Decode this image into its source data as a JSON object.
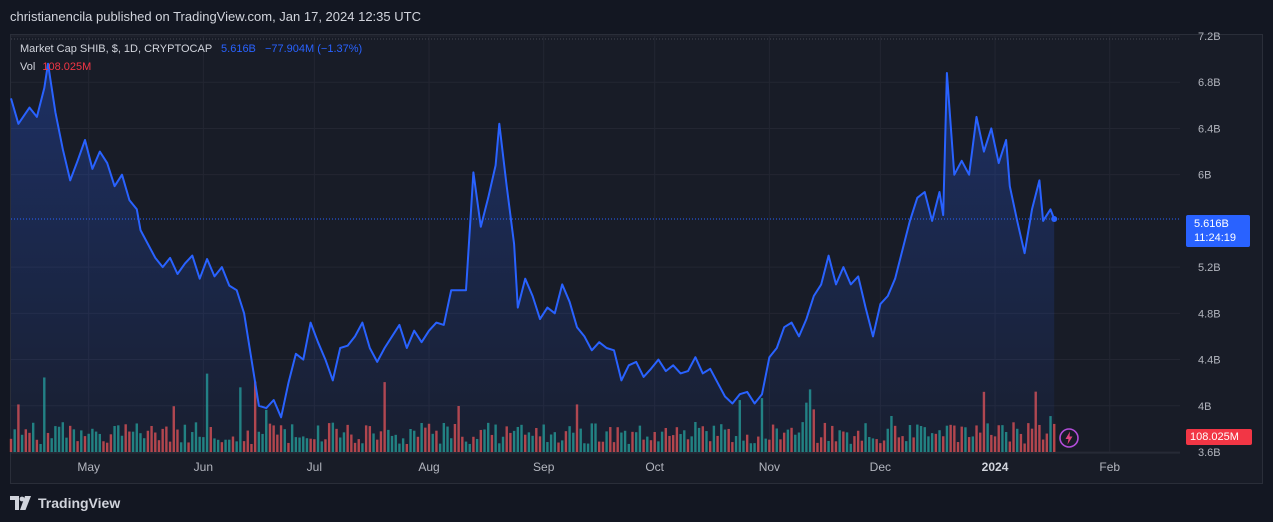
{
  "header": {
    "publisher_line": "christianencila published on TradingView.com, Jan 17, 2024 12:35 UTC"
  },
  "legend": {
    "symbol": "Market Cap SHIB, $, 1D, CRYPTOCAP",
    "last": "5.616B",
    "change": "−77.904M (−1.37%)",
    "vol_label": "Vol",
    "vol_value": "108.025M"
  },
  "price_tag": {
    "value": "5.616B",
    "countdown": "11:24:19"
  },
  "vol_tag": {
    "value": "108.025M"
  },
  "footer": {
    "brand": "TradingView"
  },
  "colors": {
    "line": "#2962ff",
    "vol_up": "#26a69a",
    "vol_down": "#ef5350",
    "background": "#181c27",
    "grid": "#232632"
  },
  "chart_data": {
    "type": "area",
    "title": "Market Cap SHIB, $, 1D, CRYPTOCAP",
    "y_axis": {
      "ticks": [
        {
          "v": 3.6,
          "label": "3.6B"
        },
        {
          "v": 4.0,
          "label": "4B"
        },
        {
          "v": 4.4,
          "label": "4.4B"
        },
        {
          "v": 4.8,
          "label": "4.8B"
        },
        {
          "v": 5.2,
          "label": "5.2B"
        },
        {
          "v": 6.0,
          "label": "6B"
        },
        {
          "v": 6.4,
          "label": "6.4B"
        },
        {
          "v": 6.8,
          "label": "6.8B"
        },
        {
          "v": 7.2,
          "label": "7.2B"
        }
      ],
      "range": [
        3.6,
        7.2
      ],
      "unit": "B"
    },
    "x_axis": {
      "labels": [
        {
          "label": "May",
          "date": "2023-05-01",
          "bold": false
        },
        {
          "label": "Jun",
          "date": "2023-06-01",
          "bold": false
        },
        {
          "label": "Jul",
          "date": "2023-07-01",
          "bold": false
        },
        {
          "label": "Aug",
          "date": "2023-08-01",
          "bold": false
        },
        {
          "label": "Sep",
          "date": "2023-09-01",
          "bold": false
        },
        {
          "label": "Oct",
          "date": "2023-10-01",
          "bold": false
        },
        {
          "label": "Nov",
          "date": "2023-11-01",
          "bold": false
        },
        {
          "label": "Dec",
          "date": "2023-12-01",
          "bold": false
        },
        {
          "label": "2024",
          "date": "2024-01-01",
          "bold": true
        },
        {
          "label": "Feb",
          "date": "2024-02-01",
          "bold": false
        }
      ],
      "range": [
        "2023-04-10",
        "2024-02-20"
      ]
    },
    "series": [
      {
        "name": "Market Cap SHIB",
        "dated_points": [
          [
            "2023-04-10",
            6.66
          ],
          [
            "2023-04-12",
            6.44
          ],
          [
            "2023-04-15",
            6.58
          ],
          [
            "2023-04-17",
            6.5
          ],
          [
            "2023-04-19",
            6.75
          ],
          [
            "2023-04-20",
            6.96
          ],
          [
            "2023-04-22",
            6.54
          ],
          [
            "2023-04-24",
            6.22
          ],
          [
            "2023-04-26",
            5.95
          ],
          [
            "2023-04-28",
            6.12
          ],
          [
            "2023-04-30",
            6.3
          ],
          [
            "2023-05-02",
            6.05
          ],
          [
            "2023-05-04",
            6.2
          ],
          [
            "2023-05-06",
            6.1
          ],
          [
            "2023-05-08",
            5.9
          ],
          [
            "2023-05-10",
            6.0
          ],
          [
            "2023-05-12",
            5.78
          ],
          [
            "2023-05-14",
            5.7
          ],
          [
            "2023-05-15",
            5.52
          ],
          [
            "2023-05-17",
            5.4
          ],
          [
            "2023-05-19",
            5.28
          ],
          [
            "2023-05-21",
            5.2
          ],
          [
            "2023-05-23",
            5.28
          ],
          [
            "2023-05-25",
            5.14
          ],
          [
            "2023-05-27",
            5.23
          ],
          [
            "2023-05-29",
            5.3
          ],
          [
            "2023-05-31",
            5.1
          ],
          [
            "2023-06-02",
            5.27
          ],
          [
            "2023-06-04",
            5.12
          ],
          [
            "2023-06-06",
            5.2
          ],
          [
            "2023-06-08",
            5.04
          ],
          [
            "2023-06-10",
            5.0
          ],
          [
            "2023-06-12",
            4.8
          ],
          [
            "2023-06-14",
            4.4
          ],
          [
            "2023-06-16",
            4.0
          ],
          [
            "2023-06-18",
            3.98
          ],
          [
            "2023-06-20",
            4.05
          ],
          [
            "2023-06-22",
            3.9
          ],
          [
            "2023-06-24",
            4.2
          ],
          [
            "2023-06-26",
            4.45
          ],
          [
            "2023-06-28",
            4.4
          ],
          [
            "2023-06-30",
            4.72
          ],
          [
            "2023-07-02",
            4.55
          ],
          [
            "2023-07-04",
            4.4
          ],
          [
            "2023-07-06",
            4.22
          ],
          [
            "2023-07-08",
            4.5
          ],
          [
            "2023-07-10",
            4.52
          ],
          [
            "2023-07-12",
            4.6
          ],
          [
            "2023-07-14",
            4.72
          ],
          [
            "2023-07-16",
            4.5
          ],
          [
            "2023-07-18",
            4.38
          ],
          [
            "2023-07-20",
            4.5
          ],
          [
            "2023-07-22",
            4.6
          ],
          [
            "2023-07-24",
            4.7
          ],
          [
            "2023-07-26",
            4.5
          ],
          [
            "2023-07-28",
            4.65
          ],
          [
            "2023-07-30",
            4.55
          ],
          [
            "2023-08-01",
            4.65
          ],
          [
            "2023-08-03",
            4.72
          ],
          [
            "2023-08-05",
            4.7
          ],
          [
            "2023-08-07",
            5.0
          ],
          [
            "2023-08-09",
            5.0
          ],
          [
            "2023-08-11",
            5.0
          ],
          [
            "2023-08-13",
            6.02
          ],
          [
            "2023-08-15",
            5.55
          ],
          [
            "2023-08-17",
            5.8
          ],
          [
            "2023-08-19",
            6.08
          ],
          [
            "2023-08-20",
            6.44
          ],
          [
            "2023-08-22",
            5.9
          ],
          [
            "2023-08-24",
            5.4
          ],
          [
            "2023-08-25",
            4.85
          ],
          [
            "2023-08-27",
            5.1
          ],
          [
            "2023-08-29",
            4.95
          ],
          [
            "2023-08-31",
            4.75
          ],
          [
            "2023-09-02",
            4.85
          ],
          [
            "2023-09-04",
            4.8
          ],
          [
            "2023-09-06",
            5.05
          ],
          [
            "2023-09-08",
            4.9
          ],
          [
            "2023-09-10",
            4.68
          ],
          [
            "2023-09-12",
            4.6
          ],
          [
            "2023-09-14",
            4.48
          ],
          [
            "2023-09-16",
            4.55
          ],
          [
            "2023-09-18",
            4.5
          ],
          [
            "2023-09-20",
            4.48
          ],
          [
            "2023-09-22",
            4.22
          ],
          [
            "2023-09-24",
            4.35
          ],
          [
            "2023-09-26",
            4.38
          ],
          [
            "2023-09-28",
            4.25
          ],
          [
            "2023-09-30",
            4.32
          ],
          [
            "2023-10-02",
            4.4
          ],
          [
            "2023-10-04",
            4.3
          ],
          [
            "2023-10-06",
            4.35
          ],
          [
            "2023-10-08",
            4.28
          ],
          [
            "2023-10-10",
            4.3
          ],
          [
            "2023-10-12",
            4.42
          ],
          [
            "2023-10-14",
            4.28
          ],
          [
            "2023-10-16",
            4.32
          ],
          [
            "2023-10-18",
            4.2
          ],
          [
            "2023-10-20",
            4.08
          ],
          [
            "2023-10-22",
            4.02
          ],
          [
            "2023-10-24",
            4.1
          ],
          [
            "2023-10-26",
            4.12
          ],
          [
            "2023-10-28",
            4.02
          ],
          [
            "2023-10-30",
            4.1
          ],
          [
            "2023-11-01",
            4.42
          ],
          [
            "2023-11-03",
            4.5
          ],
          [
            "2023-11-05",
            4.68
          ],
          [
            "2023-11-07",
            4.72
          ],
          [
            "2023-11-09",
            4.6
          ],
          [
            "2023-11-11",
            4.75
          ],
          [
            "2023-11-13",
            4.95
          ],
          [
            "2023-11-15",
            5.05
          ],
          [
            "2023-11-17",
            5.3
          ],
          [
            "2023-11-19",
            5.05
          ],
          [
            "2023-11-21",
            5.2
          ],
          [
            "2023-11-23",
            5.05
          ],
          [
            "2023-11-25",
            5.12
          ],
          [
            "2023-11-27",
            4.85
          ],
          [
            "2023-11-29",
            4.6
          ],
          [
            "2023-12-01",
            4.88
          ],
          [
            "2023-12-03",
            4.95
          ],
          [
            "2023-12-05",
            5.1
          ],
          [
            "2023-12-07",
            5.35
          ],
          [
            "2023-12-09",
            5.6
          ],
          [
            "2023-12-11",
            5.8
          ],
          [
            "2023-12-13",
            5.85
          ],
          [
            "2023-12-15",
            5.6
          ],
          [
            "2023-12-17",
            5.85
          ],
          [
            "2023-12-18",
            5.65
          ],
          [
            "2023-12-19",
            6.88
          ],
          [
            "2023-12-21",
            6.0
          ],
          [
            "2023-12-23",
            6.12
          ],
          [
            "2023-12-25",
            6.0
          ],
          [
            "2023-12-27",
            6.5
          ],
          [
            "2023-12-29",
            6.2
          ],
          [
            "2023-12-31",
            6.4
          ],
          [
            "2024-01-02",
            6.1
          ],
          [
            "2024-01-04",
            6.3
          ],
          [
            "2024-01-05",
            5.9
          ],
          [
            "2024-01-07",
            5.6
          ],
          [
            "2024-01-09",
            5.32
          ],
          [
            "2024-01-11",
            5.7
          ],
          [
            "2024-01-13",
            5.95
          ],
          [
            "2024-01-14",
            5.6
          ],
          [
            "2024-01-16",
            5.7
          ],
          [
            "2024-01-17",
            5.616
          ]
        ]
      },
      {
        "name": "Vol",
        "volume_seed": 0.6
      }
    ]
  }
}
